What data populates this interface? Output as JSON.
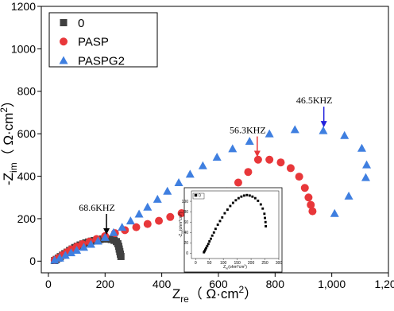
{
  "chart_data": [
    {
      "type": "scatter",
      "xlabel": [
        "Z",
        "re",
        "（ Ω·cm",
        "2",
        "）"
      ],
      "ylabel": [
        "-Z",
        "im",
        "（ Ω·cm",
        "2",
        "）"
      ],
      "xlim": [
        -25,
        1200
      ],
      "ylim": [
        -55,
        1200
      ],
      "xticks": [
        0,
        200,
        400,
        600,
        800,
        {
          "value": 1000,
          "label": "1,000"
        },
        {
          "value": 1200,
          "label": "1,200"
        }
      ],
      "yticks": [
        0,
        200,
        400,
        600,
        800,
        1000,
        1200
      ],
      "legend": "upper left",
      "series": [
        {
          "name": "0",
          "color": "#404040",
          "marker": "square",
          "x": [
            22,
            28,
            35,
            42,
            50,
            58,
            66,
            75,
            84,
            93,
            102,
            112,
            122,
            132,
            142,
            152,
            162,
            172,
            182,
            192,
            202,
            212,
            222,
            232,
            240,
            245,
            248,
            250,
            252,
            254,
            256
          ],
          "values": [
            3,
            8,
            14,
            21,
            28,
            35,
            42,
            50,
            57,
            64,
            70,
            76,
            81,
            86,
            90,
            94,
            97,
            100,
            102,
            104,
            105,
            104,
            102,
            98,
            92,
            82,
            70,
            57,
            45,
            33,
            22
          ]
        },
        {
          "name": "PASP",
          "color": "#e8373a",
          "marker": "circle",
          "x": [
            22,
            35,
            50,
            65,
            80,
            100,
            120,
            145,
            170,
            200,
            235,
            270,
            310,
            350,
            390,
            430,
            470,
            510,
            550,
            590,
            630,
            670,
            705,
            740,
            780,
            820,
            855,
            885,
            905,
            918,
            926,
            932
          ],
          "values": [
            5,
            15,
            28,
            42,
            55,
            68,
            80,
            92,
            104,
            118,
            132,
            146,
            160,
            175,
            190,
            208,
            226,
            246,
            270,
            298,
            328,
            370,
            420,
            478,
            478,
            465,
            438,
            398,
            345,
            300,
            265,
            235
          ]
        },
        {
          "name": "PASPG2",
          "color": "#3f7fe0",
          "marker": "triangle",
          "x": [
            22,
            40,
            60,
            80,
            100,
            125,
            150,
            175,
            200,
            230,
            260,
            290,
            320,
            350,
            385,
            420,
            460,
            500,
            545,
            595,
            650,
            710,
            780,
            870,
            970,
            1045,
            1106,
            1123,
            1120,
            1060,
            1010
          ],
          "values": [
            5,
            15,
            28,
            40,
            52,
            66,
            80,
            95,
            112,
            135,
            160,
            190,
            222,
            255,
            292,
            330,
            370,
            410,
            450,
            490,
            530,
            565,
            600,
            620,
            615,
            592,
            532,
            454,
            394,
            307,
            225
          ]
        }
      ],
      "annotations": [
        {
          "text": "68.6KHZ",
          "x": 205,
          "y": 125,
          "color": "#000000"
        },
        {
          "text": "56.3KHZ",
          "x": 737,
          "y": 490,
          "color": "#e8373a"
        },
        {
          "text": "46.5KHZ",
          "x": 972,
          "y": 630,
          "color": "#2222dd"
        }
      ]
    },
    {
      "type": "scatter",
      "xlabel": [
        "Z",
        "re",
        "(ohm*cm",
        "2",
        ")"
      ],
      "ylabel": [
        "-Z",
        "im",
        "(ohm*cm",
        "2",
        ")"
      ],
      "xlim": [
        -15,
        300
      ],
      "ylim": [
        -10,
        120
      ],
      "xticks": [
        0,
        50,
        100,
        150,
        200,
        250,
        300
      ],
      "yticks": [
        0,
        20,
        40,
        60,
        80,
        100
      ],
      "legend": "upper left",
      "series": [
        {
          "name": "0",
          "color": "#000000",
          "marker": "square",
          "x": [
            30,
            32,
            35,
            38,
            42,
            46,
            50,
            55,
            60,
            66,
            72,
            80,
            88,
            96,
            105,
            115,
            125,
            135,
            145,
            155,
            165,
            175,
            185,
            195,
            205,
            215,
            225,
            235,
            242,
            248,
            250,
            252,
            253
          ],
          "values": [
            2,
            4,
            7,
            10,
            14,
            18,
            23,
            28,
            34,
            40,
            47,
            55,
            62,
            69,
            77,
            84,
            91,
            97,
            102,
            106,
            109,
            111,
            112,
            111,
            109,
            106,
            101,
            94,
            86,
            76,
            68,
            60,
            52
          ]
        }
      ]
    }
  ]
}
